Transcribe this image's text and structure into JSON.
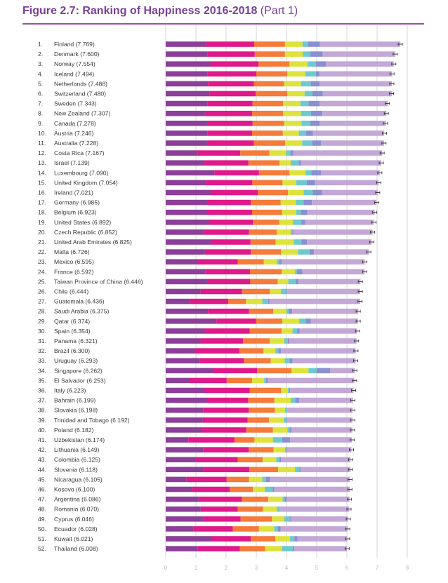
{
  "title": "Figure 2.7: Ranking of Happiness 2016-2018",
  "subtitle": "(Part 1)",
  "chart_data": {
    "type": "bar",
    "orientation": "horizontal",
    "stacked": true,
    "title": "Figure 2.7: Ranking of Happiness 2016-2018 (Part 1)",
    "xlim": [
      0,
      8
    ],
    "xticks": [
      "0",
      "1",
      "2",
      "3",
      "4",
      "5",
      "6",
      "7",
      "8"
    ],
    "grid": true,
    "segment_colors": [
      "#8b3f98",
      "#e0198a",
      "#f47b3a",
      "#dde33c",
      "#6ec9cf",
      "#8a8fd2",
      "#c3a8d6"
    ],
    "countries": [
      {
        "rank": "1.",
        "label": "Finland (7.769)",
        "score": 7.769,
        "segments": [
          1.34,
          1.59,
          1.02,
          0.58,
          0.19,
          0.39,
          2.66
        ]
      },
      {
        "rank": "2.",
        "label": "Denmark (7.600)",
        "score": 7.6,
        "segments": [
          1.38,
          1.57,
          1.0,
          0.59,
          0.25,
          0.41,
          2.4
        ]
      },
      {
        "rank": "3.",
        "label": "Norway (7.554)",
        "score": 7.554,
        "segments": [
          1.49,
          1.58,
          1.03,
          0.6,
          0.27,
          0.34,
          2.24
        ]
      },
      {
        "rank": "4.",
        "label": "Iceland (7.494)",
        "score": 7.494,
        "segments": [
          1.38,
          1.62,
          1.03,
          0.59,
          0.35,
          0.12,
          2.41
        ]
      },
      {
        "rank": "5.",
        "label": "Netherlands (7.488)",
        "score": 7.488,
        "segments": [
          1.4,
          1.52,
          1.0,
          0.56,
          0.32,
          0.3,
          2.39
        ]
      },
      {
        "rank": "6.",
        "label": "Switzerland (7.480)",
        "score": 7.48,
        "segments": [
          1.45,
          1.53,
          1.05,
          0.57,
          0.26,
          0.34,
          2.29
        ]
      },
      {
        "rank": "7.",
        "label": "Sweden (7.343)",
        "score": 7.343,
        "segments": [
          1.39,
          1.49,
          1.01,
          0.57,
          0.27,
          0.37,
          2.26
        ]
      },
      {
        "rank": "8.",
        "label": "New Zealand (7.307)",
        "score": 7.307,
        "segments": [
          1.3,
          1.56,
          1.03,
          0.59,
          0.33,
          0.38,
          2.12
        ]
      },
      {
        "rank": "9.",
        "label": "Canada (7.278)",
        "score": 7.278,
        "segments": [
          1.37,
          1.51,
          1.04,
          0.58,
          0.29,
          0.31,
          2.19
        ]
      },
      {
        "rank": "10.",
        "label": "Austria (7.246)",
        "score": 7.246,
        "segments": [
          1.38,
          1.48,
          1.02,
          0.53,
          0.24,
          0.23,
          2.35
        ]
      },
      {
        "rank": "11.",
        "label": "Australia (7.228)",
        "score": 7.228,
        "segments": [
          1.37,
          1.55,
          1.04,
          0.56,
          0.33,
          0.29,
          2.09
        ]
      },
      {
        "rank": "12.",
        "label": "Costa Rica (7.167)",
        "score": 7.167,
        "segments": [
          1.03,
          1.44,
          0.96,
          0.56,
          0.14,
          0.09,
          2.95
        ]
      },
      {
        "rank": "13.",
        "label": "Israel (7.139)",
        "score": 7.139,
        "segments": [
          1.28,
          1.46,
          1.03,
          0.37,
          0.26,
          0.08,
          2.66
        ]
      },
      {
        "rank": "14.",
        "label": "Luxembourg (7.090)",
        "score": 7.09,
        "segments": [
          1.61,
          1.48,
          1.01,
          0.53,
          0.19,
          0.32,
          1.95
        ]
      },
      {
        "rank": "15.",
        "label": "United Kingdom (7.054)",
        "score": 7.054,
        "segments": [
          1.33,
          1.54,
          1.0,
          0.45,
          0.35,
          0.28,
          2.1
        ]
      },
      {
        "rank": "16.",
        "label": "Ireland (7.021)",
        "score": 7.021,
        "segments": [
          1.5,
          1.55,
          1.0,
          0.52,
          0.3,
          0.31,
          1.84
        ]
      },
      {
        "rank": "17.",
        "label": "Germany (6.985)",
        "score": 6.985,
        "segments": [
          1.37,
          1.45,
          0.99,
          0.5,
          0.26,
          0.27,
          2.14
        ]
      },
      {
        "rank": "18.",
        "label": "Belgium (6.923)",
        "score": 6.923,
        "segments": [
          1.36,
          1.5,
          0.99,
          0.47,
          0.16,
          0.21,
          2.23
        ]
      },
      {
        "rank": "19.",
        "label": "United States (6.892)",
        "score": 6.892,
        "segments": [
          1.43,
          1.46,
          0.87,
          0.45,
          0.28,
          0.13,
          2.27
        ]
      },
      {
        "rank": "20.",
        "label": "Czech Republic (6.852)",
        "score": 6.852,
        "segments": [
          1.27,
          1.49,
          0.92,
          0.46,
          0.05,
          0.04,
          2.62
        ]
      },
      {
        "rank": "21.",
        "label": "United Arab Emirates (6.825)",
        "score": 6.825,
        "segments": [
          1.5,
          1.31,
          0.83,
          0.6,
          0.26,
          0.18,
          2.14
        ]
      },
      {
        "rank": "22.",
        "label": "Malta (6.726)",
        "score": 6.726,
        "segments": [
          1.3,
          1.52,
          1.0,
          0.56,
          0.38,
          0.15,
          1.82
        ]
      },
      {
        "rank": "23.",
        "label": "Mexico (6.595)",
        "score": 6.595,
        "segments": [
          1.07,
          1.32,
          0.86,
          0.43,
          0.07,
          0.09,
          2.75
        ]
      },
      {
        "rank": "24.",
        "label": "France (6.592)",
        "score": 6.592,
        "segments": [
          1.32,
          1.47,
          1.05,
          0.44,
          0.07,
          0.18,
          2.06
        ]
      },
      {
        "rank": "25.",
        "label": "Taiwan Province of China (6.446)",
        "score": 6.446,
        "segments": [
          1.37,
          1.43,
          0.91,
          0.35,
          0.24,
          0.1,
          2.05
        ]
      },
      {
        "rank": "26.",
        "label": "Chile (6.444)",
        "score": 6.444,
        "segments": [
          1.16,
          1.37,
          0.92,
          0.36,
          0.19,
          0.03,
          2.41
        ]
      },
      {
        "rank": "27.",
        "label": "Guatemala (6.436)",
        "score": 6.436,
        "segments": [
          0.8,
          1.27,
          0.59,
          0.54,
          0.19,
          0.05,
          3.0
        ]
      },
      {
        "rank": "28.",
        "label": "Saudi Arabia (6.375)",
        "score": 6.375,
        "segments": [
          1.4,
          1.36,
          0.8,
          0.44,
          0.07,
          0.12,
          2.19
        ]
      },
      {
        "rank": "29.",
        "label": "Qatar (6.374)",
        "score": 6.374,
        "segments": [
          1.68,
          1.31,
          0.87,
          0.56,
          0.22,
          0.17,
          1.56
        ]
      },
      {
        "rank": "30.",
        "label": "Spain (6.354)",
        "score": 6.354,
        "segments": [
          1.29,
          1.49,
          1.06,
          0.36,
          0.15,
          0.08,
          1.91
        ]
      },
      {
        "rank": "31.",
        "label": "Panama (6.321)",
        "score": 6.321,
        "segments": [
          1.15,
          1.41,
          0.89,
          0.48,
          0.11,
          0.06,
          2.22
        ]
      },
      {
        "rank": "32.",
        "label": "Brazil (6.300)",
        "score": 6.3,
        "segments": [
          1.0,
          1.44,
          0.8,
          0.39,
          0.1,
          0.09,
          2.47
        ]
      },
      {
        "rank": "33.",
        "label": "Uruguay (6.293)",
        "score": 6.293,
        "segments": [
          1.12,
          1.47,
          0.89,
          0.46,
          0.16,
          0.1,
          2.09
        ]
      },
      {
        "rank": "34.",
        "label": "Singapore (6.262)",
        "score": 6.262,
        "segments": [
          1.57,
          1.46,
          1.14,
          0.56,
          0.27,
          0.45,
          0.81
        ]
      },
      {
        "rank": "35.",
        "label": "El Salvador (6.253)",
        "score": 6.253,
        "segments": [
          0.79,
          1.23,
          0.84,
          0.4,
          0.06,
          0.07,
          2.86
        ]
      },
      {
        "rank": "36.",
        "label": "Italy (6.223)",
        "score": 6.223,
        "segments": [
          1.29,
          1.49,
          1.04,
          0.23,
          0.04,
          0.03,
          2.1
        ]
      },
      {
        "rank": "37.",
        "label": "Bahrain (6.199)",
        "score": 6.199,
        "segments": [
          1.36,
          1.37,
          0.87,
          0.54,
          0.15,
          0.13,
          1.78
        ]
      },
      {
        "rank": "38.",
        "label": "Slovakia (6.198)",
        "score": 6.198,
        "segments": [
          1.25,
          1.5,
          0.87,
          0.33,
          0.08,
          0.01,
          2.15
        ]
      },
      {
        "rank": "39.",
        "label": "Trinidad and Tobago (6.192)",
        "score": 6.192,
        "segments": [
          1.23,
          1.48,
          0.71,
          0.49,
          0.09,
          0.02,
          2.17
        ]
      },
      {
        "rank": "40.",
        "label": "Poland (6.182)",
        "score": 6.182,
        "segments": [
          1.21,
          1.46,
          0.88,
          0.48,
          0.07,
          0.07,
          2.01
        ]
      },
      {
        "rank": "41.",
        "label": "Uzbekistan (6.174)",
        "score": 6.174,
        "segments": [
          0.75,
          1.53,
          0.66,
          0.61,
          0.31,
          0.26,
          2.05
        ]
      },
      {
        "rank": "42.",
        "label": "Lithuania (6.149)",
        "score": 6.149,
        "segments": [
          1.24,
          1.51,
          0.82,
          0.38,
          0.04,
          0.02,
          2.14
        ]
      },
      {
        "rank": "43.",
        "label": "Colombia (6.125)",
        "score": 6.125,
        "segments": [
          0.99,
          1.4,
          0.82,
          0.45,
          0.1,
          0.06,
          2.3
        ]
      },
      {
        "rank": "44.",
        "label": "Slovenia (6.118)",
        "score": 6.118,
        "segments": [
          1.26,
          1.51,
          0.95,
          0.56,
          0.15,
          0.04,
          1.65
        ]
      },
      {
        "rank": "45.",
        "label": "Nicaragua (6.105)",
        "score": 6.105,
        "segments": [
          0.69,
          1.33,
          0.74,
          0.44,
          0.12,
          0.14,
          2.64
        ]
      },
      {
        "rank": "46.",
        "label": "Kosovo (6.100)",
        "score": 6.1,
        "segments": [
          0.88,
          1.24,
          0.77,
          0.39,
          0.26,
          0.06,
          2.5
        ]
      },
      {
        "rank": "47.",
        "label": "Argentina (6.086)",
        "score": 6.086,
        "segments": [
          1.09,
          1.43,
          0.88,
          0.47,
          0.07,
          0.06,
          2.09
        ]
      },
      {
        "rank": "48.",
        "label": "Romania (6.070)",
        "score": 6.07,
        "segments": [
          1.16,
          1.23,
          0.83,
          0.46,
          0.08,
          0.01,
          2.31
        ]
      },
      {
        "rank": "49.",
        "label": "Cyprus (6.046)",
        "score": 6.046,
        "segments": [
          1.26,
          1.22,
          1.04,
          0.41,
          0.19,
          0.04,
          1.88
        ]
      },
      {
        "rank": "50.",
        "label": "Ecuador (6.028)",
        "score": 6.028,
        "segments": [
          0.91,
          1.31,
          0.87,
          0.5,
          0.13,
          0.09,
          2.22
        ]
      },
      {
        "rank": "51.",
        "label": "Kuwait (6.021)",
        "score": 6.021,
        "segments": [
          1.5,
          1.32,
          0.81,
          0.49,
          0.14,
          0.1,
          1.66
        ]
      },
      {
        "rank": "52.",
        "label": "Thailand (6.008)",
        "score": 6.008,
        "segments": [
          1.05,
          1.41,
          0.83,
          0.56,
          0.36,
          0.05,
          1.75
        ]
      }
    ]
  }
}
